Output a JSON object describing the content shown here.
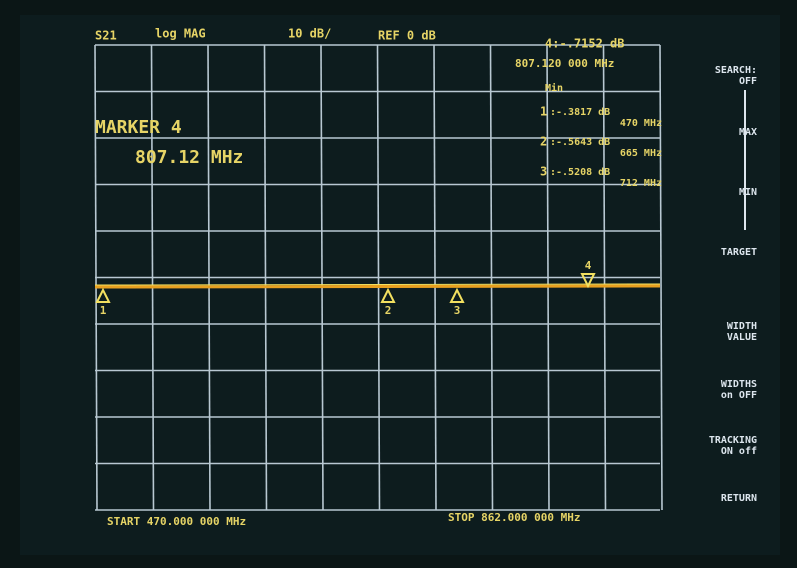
{
  "header": {
    "channel": "S21",
    "format": "log MAG",
    "scale": "10 dB/",
    "ref": "REF 0 dB",
    "active_marker": "4:-.7152 dB",
    "active_freq": "807.120 000 MHz"
  },
  "marker_box": {
    "title": "MARKER 4",
    "freq": "807.12 MHz"
  },
  "stats": {
    "label": "Min",
    "rows": [
      {
        "marker": "1",
        "value": ":-.3817 dB",
        "freq": "470 MHz"
      },
      {
        "marker": "2",
        "value": ":-.5643 dB",
        "freq": "665 MHz"
      },
      {
        "marker": "3",
        "value": ":-.5208 dB",
        "freq": "712 MHz"
      }
    ]
  },
  "markers": [
    "1",
    "2",
    "3",
    "4"
  ],
  "footer": {
    "start": "START 470.000 000 MHz",
    "stop": "STOP 862.000 000 MHz"
  },
  "softkeys": [
    [
      "SEARCH:",
      "OFF"
    ],
    [
      "MAX"
    ],
    [
      "MIN"
    ],
    [
      "TARGET"
    ],
    [
      "WIDTH",
      "VALUE"
    ],
    [
      "WIDTHS",
      "on OFF"
    ],
    [
      "TRACKING",
      "ON off"
    ],
    [
      "RETURN"
    ]
  ]
}
